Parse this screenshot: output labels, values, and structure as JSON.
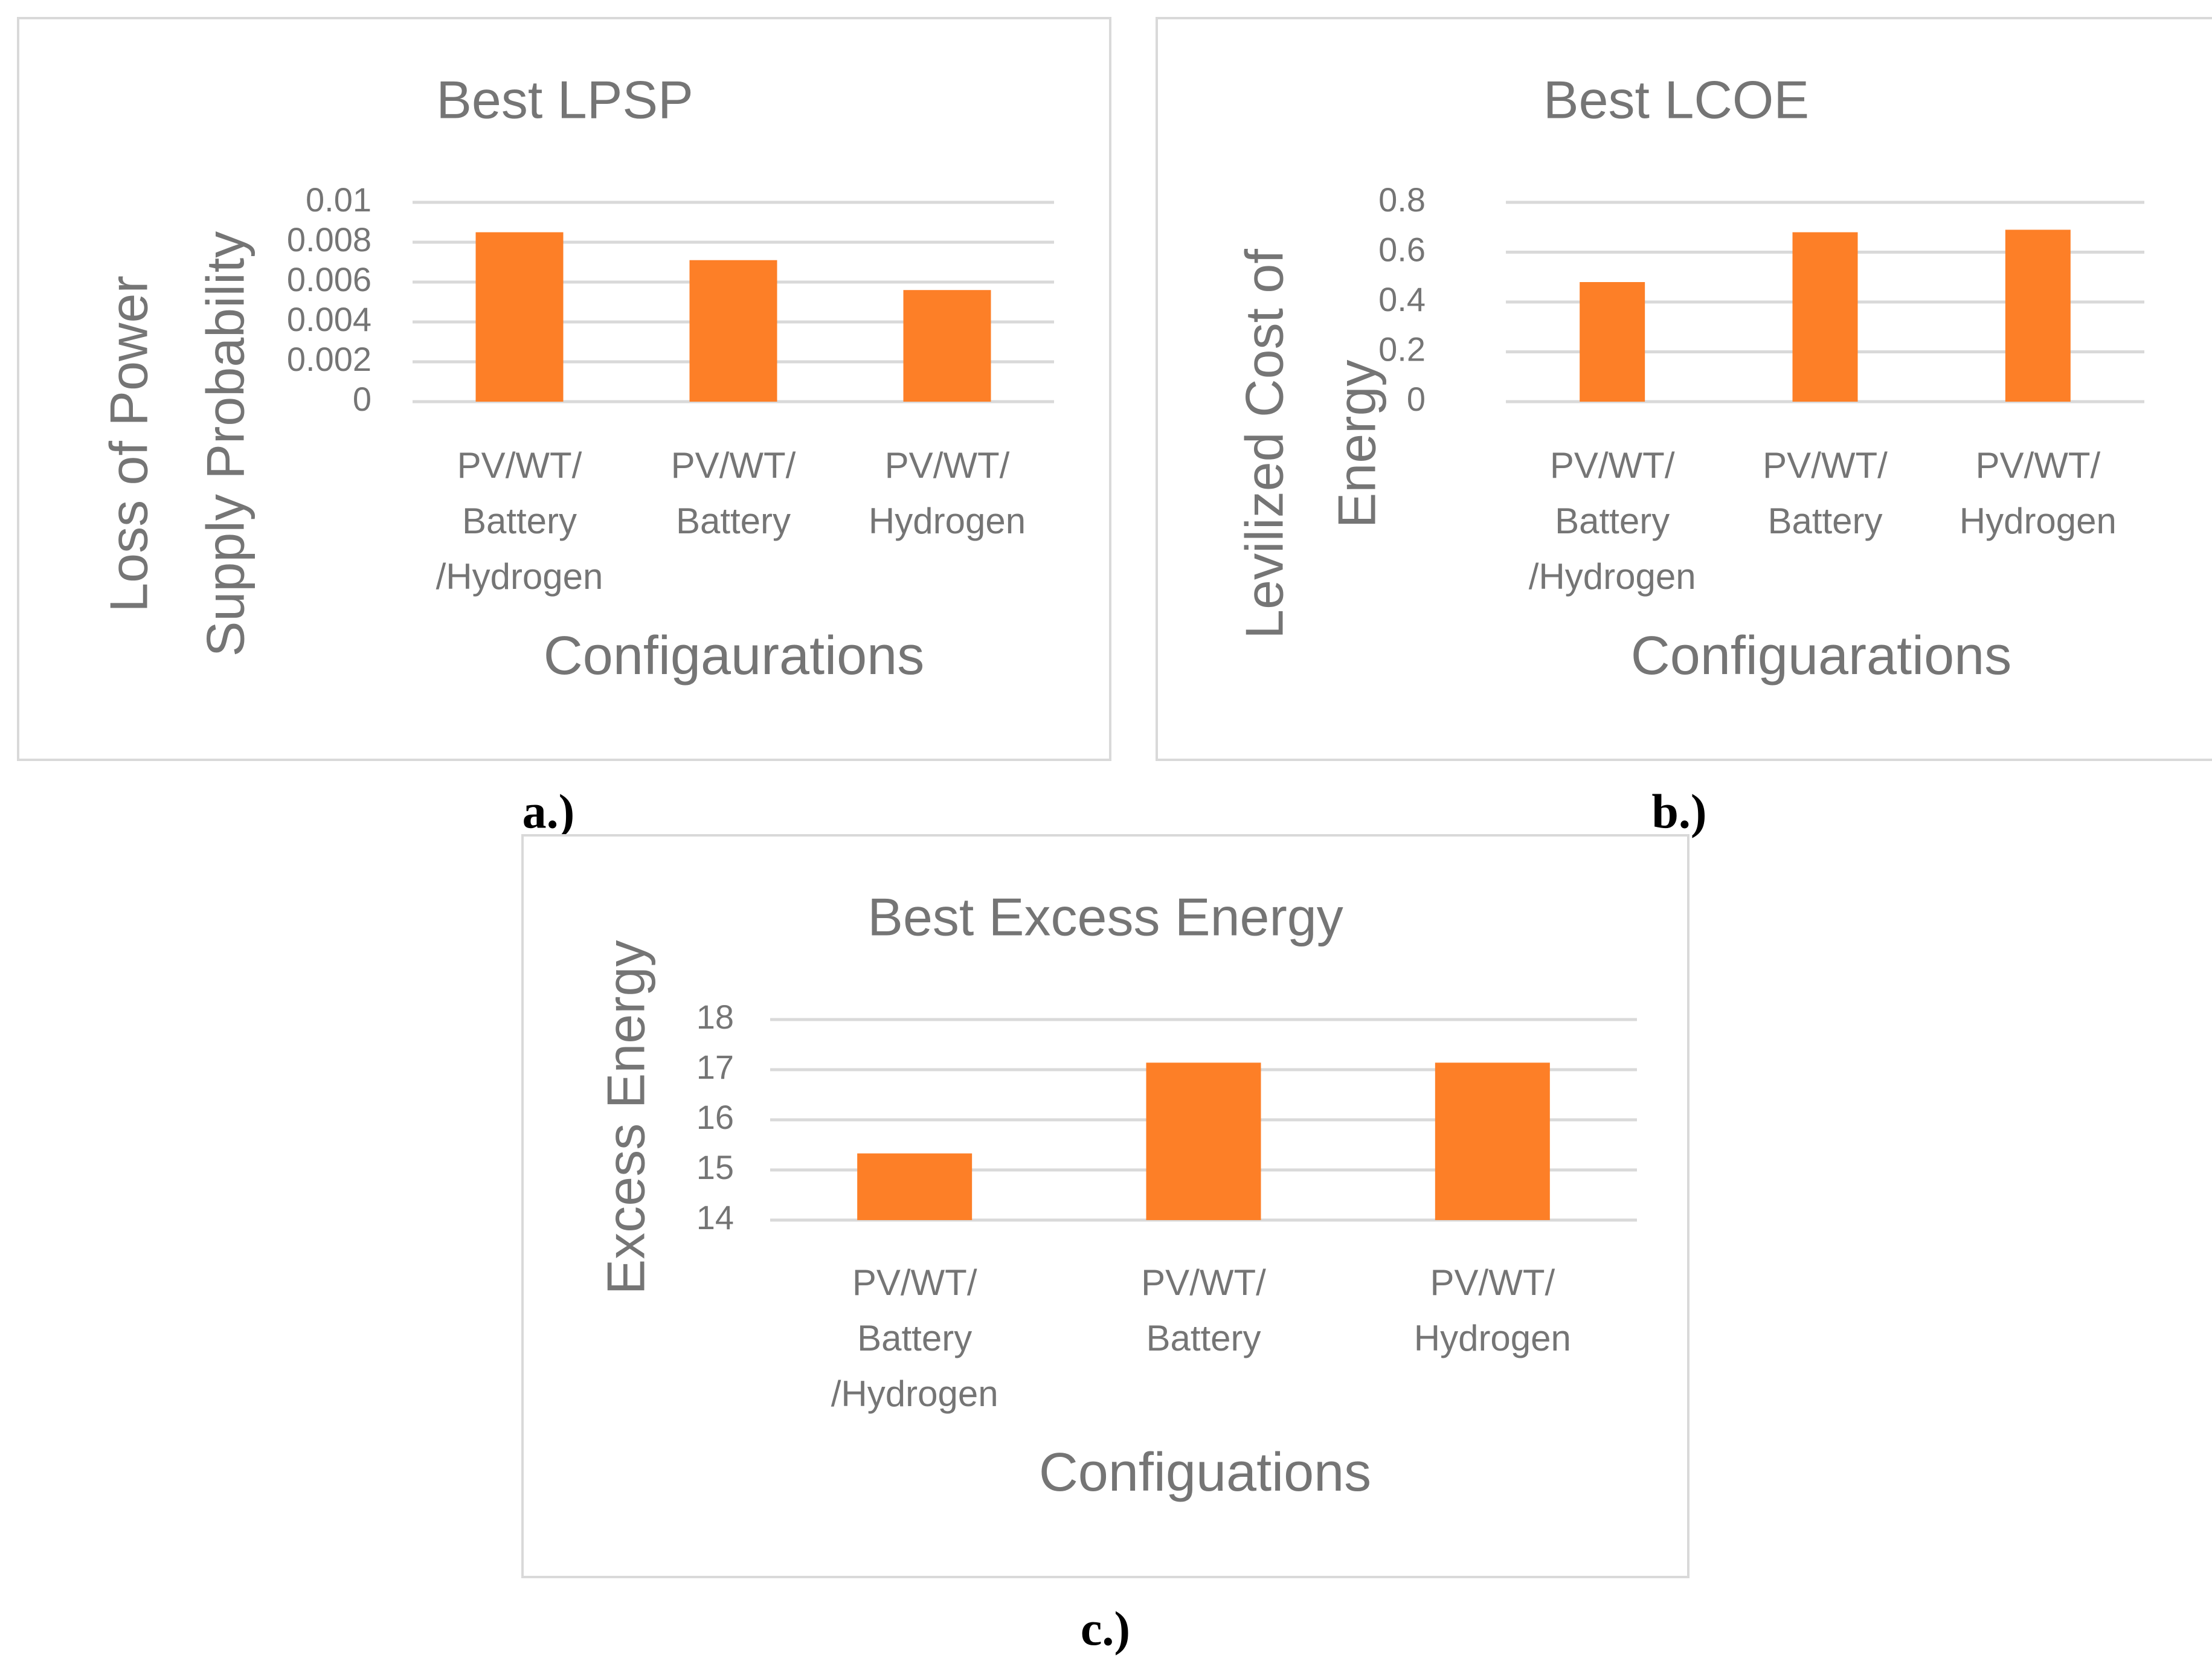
{
  "colors": {
    "bar": "#FD7F27",
    "grid": "#D9D9D9",
    "frame": "#D9D9D9",
    "text": "#757575",
    "caption": "#000000"
  },
  "chart_data": [
    {
      "type": "bar",
      "title": "Best LPSP",
      "xlabel": "Configaurations",
      "ylabel": [
        "Loss of Power",
        "Supply Probability"
      ],
      "categories": [
        [
          "PV/WT/",
          "Battery",
          "/Hydrogen"
        ],
        [
          "PV/WT/",
          "Battery"
        ],
        [
          "PV/WT/",
          "Hydrogen"
        ]
      ],
      "values": [
        0.0085,
        0.0071,
        0.0056
      ],
      "ylim": [
        0,
        0.01
      ],
      "yticks": [
        0,
        0.002,
        0.004,
        0.006,
        0.008,
        0.01
      ],
      "yticklabels": [
        "0",
        "0.002",
        "0.004",
        "0.006",
        "0.008",
        "0.01"
      ],
      "grid": true,
      "caption": "a.)"
    },
    {
      "type": "bar",
      "title": "Best LCOE",
      "xlabel": "Configuarations",
      "ylabel": [
        "Levilized Cost of",
        "Energy"
      ],
      "categories": [
        [
          "PV/WT/",
          "Battery",
          "/Hydrogen"
        ],
        [
          "PV/WT/",
          "Battery"
        ],
        [
          "PV/WT/",
          "Hydrogen"
        ]
      ],
      "values": [
        0.48,
        0.68,
        0.69
      ],
      "ylim": [
        0,
        0.8
      ],
      "yticks": [
        0,
        0.2,
        0.4,
        0.6,
        0.8
      ],
      "yticklabels": [
        "0",
        "0.2",
        "0.4",
        "0.6",
        "0.8"
      ],
      "grid": true,
      "caption": "b.)"
    },
    {
      "type": "bar",
      "title": "Best Excess Energy",
      "xlabel": "Configuations",
      "ylabel": [
        "Excess Energy"
      ],
      "categories": [
        [
          "PV/WT/",
          "Battery",
          "/Hydrogen"
        ],
        [
          "PV/WT/",
          "Battery"
        ],
        [
          "PV/WT/",
          "Hydrogen"
        ]
      ],
      "values": [
        15.33,
        17.14,
        17.14
      ],
      "ylim": [
        14,
        18
      ],
      "yticks": [
        14,
        15,
        16,
        17,
        18
      ],
      "yticklabels": [
        "14",
        "15",
        "16",
        "17",
        "18"
      ],
      "grid": true,
      "caption": "c.)"
    }
  ]
}
